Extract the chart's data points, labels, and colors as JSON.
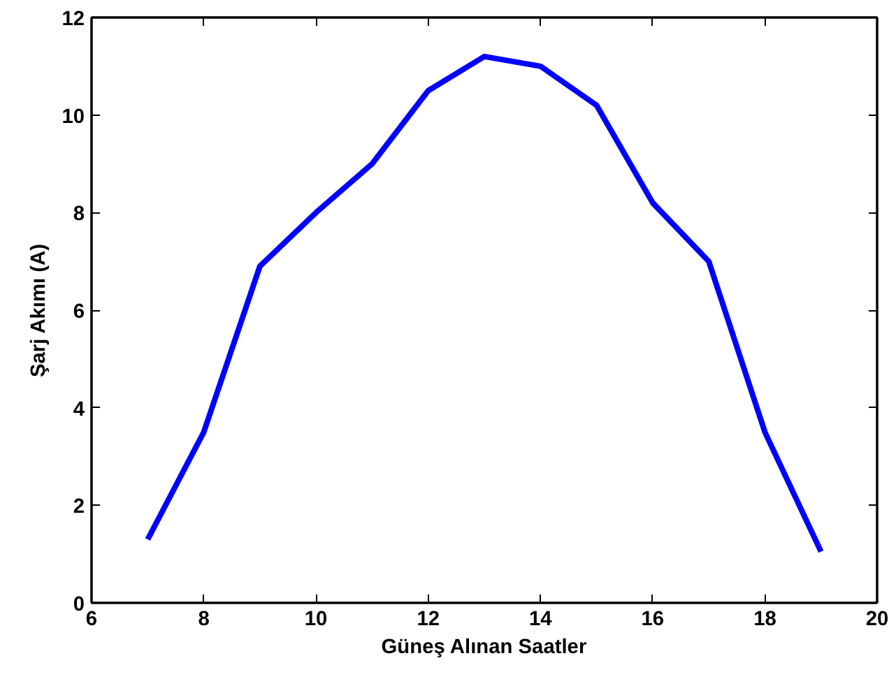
{
  "chart_data": {
    "type": "line",
    "xlabel": "Güneş Alınan Saatler",
    "ylabel": "Şarj Akımı (A)",
    "x": [
      7,
      8,
      9,
      10,
      11,
      12,
      13,
      14,
      15,
      16,
      17,
      18,
      19
    ],
    "series": [
      {
        "color": "#0000ff",
        "values": [
          1.3,
          3.5,
          6.9,
          8.0,
          9.0,
          10.5,
          11.2,
          11.0,
          10.2,
          8.2,
          7.0,
          3.5,
          1.05
        ]
      }
    ],
    "xlim": [
      6,
      20
    ],
    "ylim": [
      0,
      12
    ],
    "xticks": [
      6,
      8,
      10,
      12,
      14,
      16,
      18,
      20
    ],
    "yticks": [
      0,
      2,
      4,
      6,
      8,
      10,
      12
    ],
    "grid": false,
    "line_style": "solid"
  }
}
